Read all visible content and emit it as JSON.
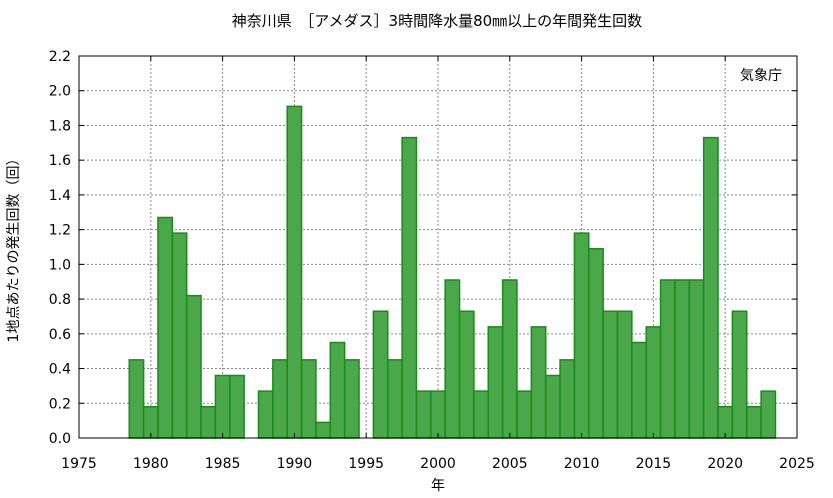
{
  "chart_data": {
    "type": "bar",
    "title": "神奈川県　［アメダス］3時間降水量80㎜以上の年間発生回数",
    "xlabel": "年",
    "ylabel": "1地点あたりの発生回数（回）",
    "annotation": "気象庁",
    "xlim": [
      1975,
      2025
    ],
    "ylim": [
      0,
      2.2
    ],
    "x_ticks": [
      "1975",
      "1980",
      "1985",
      "1990",
      "1995",
      "2000",
      "2005",
      "2010",
      "2015",
      "2020",
      "2025"
    ],
    "y_ticks": [
      "0.0",
      "0.2",
      "0.4",
      "0.6",
      "0.8",
      "1.0",
      "1.2",
      "1.4",
      "1.6",
      "1.8",
      "2.0",
      "2.2"
    ],
    "grid": true,
    "bar_color": "#4aa84a",
    "bar_edge_color": "#1a8a1a",
    "x": [
      1979,
      1980,
      1981,
      1982,
      1983,
      1984,
      1985,
      1986,
      1987,
      1988,
      1989,
      1990,
      1991,
      1992,
      1993,
      1994,
      1995,
      1996,
      1997,
      1998,
      1999,
      2000,
      2001,
      2002,
      2003,
      2004,
      2005,
      2006,
      2007,
      2008,
      2009,
      2010,
      2011,
      2012,
      2013,
      2014,
      2015,
      2016,
      2017,
      2018,
      2019,
      2020,
      2021,
      2022,
      2023
    ],
    "values": [
      0.45,
      0.18,
      1.27,
      1.18,
      0.82,
      0.18,
      0.36,
      0.36,
      0.0,
      0.27,
      0.45,
      1.91,
      0.45,
      0.09,
      0.55,
      0.45,
      0.0,
      0.73,
      0.45,
      1.73,
      0.27,
      0.27,
      0.91,
      0.73,
      0.27,
      0.64,
      0.91,
      0.27,
      0.64,
      0.36,
      0.45,
      1.18,
      1.09,
      0.73,
      0.73,
      0.55,
      0.64,
      0.91,
      0.91,
      0.91,
      1.73,
      0.18,
      0.73,
      0.18,
      0.27
    ]
  }
}
